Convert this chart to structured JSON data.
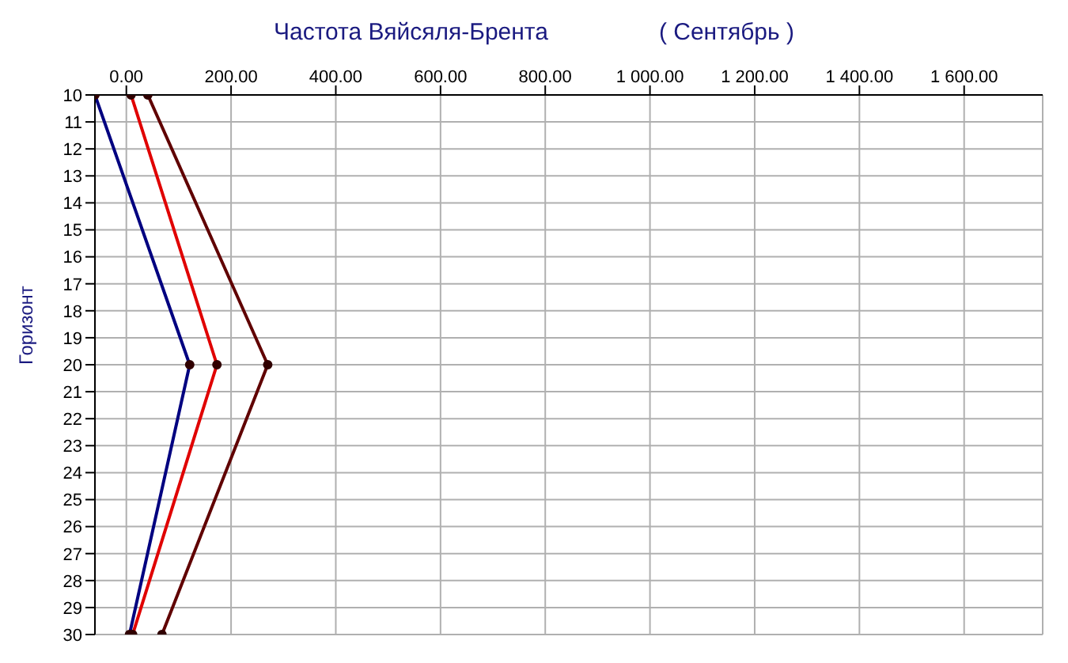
{
  "chart_data": {
    "type": "line",
    "title": "Частота Вяйсяля-Брента",
    "subtitle": "( Сентябрь )",
    "ylabel": "Горизонт",
    "orientation": "horizontal",
    "x": [
      10,
      20,
      30
    ],
    "series": [
      {
        "color": "#000080",
        "values": [
          -60,
          121,
          6
        ]
      },
      {
        "color": "#e00000",
        "values": [
          9,
          173,
          12
        ]
      },
      {
        "color": "#600000",
        "values": [
          41,
          270,
          68
        ]
      }
    ],
    "xlim": [
      -60,
      1750
    ],
    "xticks": [
      {
        "value": 0,
        "label": "0.00"
      },
      {
        "value": 200,
        "label": "200.00"
      },
      {
        "value": 400,
        "label": "400.00"
      },
      {
        "value": 600,
        "label": "600.00"
      },
      {
        "value": 800,
        "label": "800.00"
      },
      {
        "value": 1000,
        "label": "1 000.00"
      },
      {
        "value": 1200,
        "label": "1 200.00"
      },
      {
        "value": 1400,
        "label": "1 400.00"
      },
      {
        "value": 1600,
        "label": "1 600.00"
      }
    ],
    "ylim": [
      30,
      10
    ],
    "yticks": [
      10,
      11,
      12,
      13,
      14,
      15,
      16,
      17,
      18,
      19,
      20,
      21,
      22,
      23,
      24,
      25,
      26,
      27,
      28,
      29,
      30
    ],
    "grid": true,
    "legend": false,
    "marker": "circle",
    "line_style": "solid"
  }
}
